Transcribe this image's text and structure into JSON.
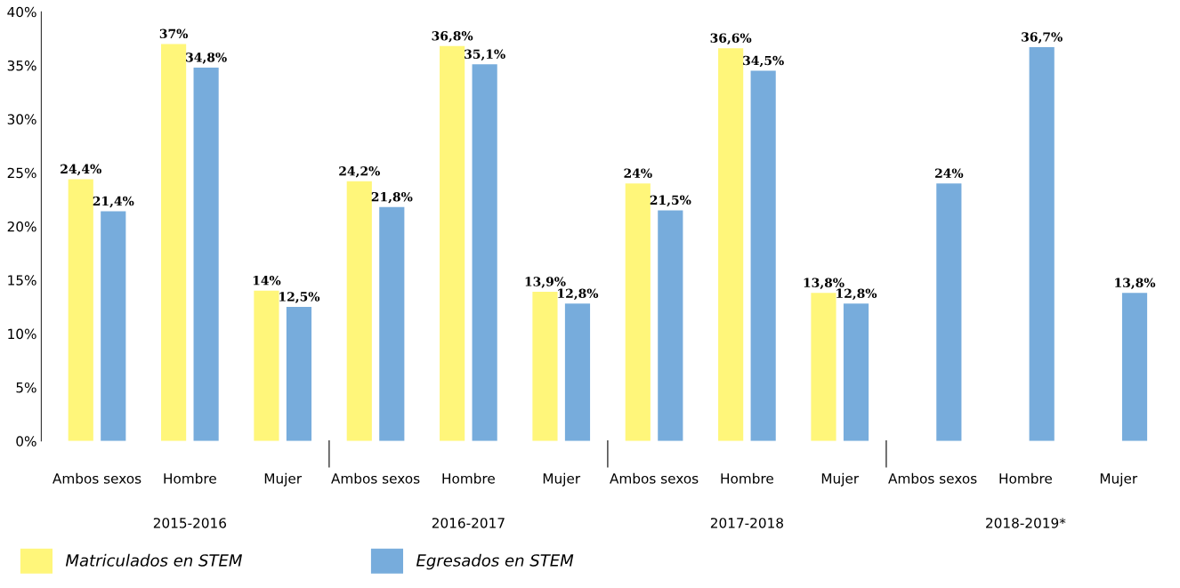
{
  "chart_data": {
    "type": "bar",
    "categories": [
      "Ambos sexos",
      "Hombre",
      "Mujer",
      "Ambos sexos",
      "Hombre",
      "Mujer",
      "Ambos sexos",
      "Hombre",
      "Mujer",
      "Ambos sexos",
      "Hombre",
      "Mujer"
    ],
    "series": [
      {
        "name": "Matriculados en STEM",
        "color": "#fff67a",
        "values": [
          24.4,
          37,
          14,
          24.2,
          36.8,
          13.9,
          24,
          36.6,
          13.8,
          null,
          null,
          null
        ],
        "value_labels": [
          "24,4%",
          "37%",
          "14%",
          "24,2%",
          "36,8%",
          "13,9%",
          "24%",
          "36,6%",
          "13,8%",
          null,
          null,
          null
        ]
      },
      {
        "name": "Egresados en STEM",
        "color": "#77acdc",
        "values": [
          21.4,
          34.8,
          12.5,
          21.8,
          35.1,
          12.8,
          21.5,
          34.5,
          12.8,
          24,
          36.7,
          13.8
        ],
        "value_labels": [
          "21,4%",
          "34,8%",
          "12,5%",
          "21,8%",
          "35,1%",
          "12,8%",
          "21,5%",
          "34,5%",
          "12,8%",
          "24%",
          "36,7%",
          "13,8%"
        ]
      }
    ],
    "annotations": [
      "2015-2016",
      "2016-2017",
      "2017-2018",
      "2018-2019*"
    ],
    "ylim": [
      0,
      40
    ],
    "yticks": [
      {
        "value": 0,
        "label": "0%"
      },
      {
        "value": 5,
        "label": "5%"
      },
      {
        "value": 10,
        "label": "10%"
      },
      {
        "value": 15,
        "label": "15%"
      },
      {
        "value": 20,
        "label": "20%"
      },
      {
        "value": 25,
        "label": "25%"
      },
      {
        "value": 30,
        "label": "30%"
      },
      {
        "value": 35,
        "label": "35%"
      },
      {
        "value": 40,
        "label": "40%"
      }
    ],
    "grid": false,
    "legend": "bottom"
  }
}
